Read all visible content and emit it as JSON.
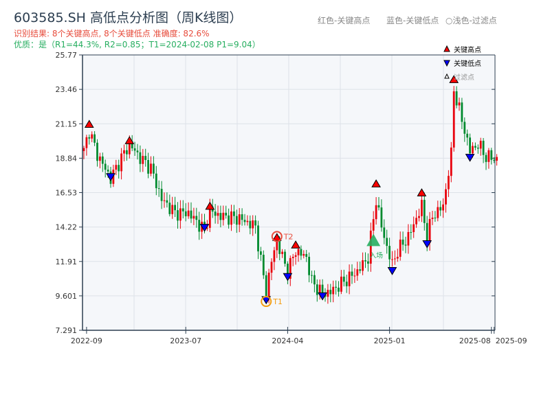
{
  "header": {
    "title": "603585.SH 高低点分析图（周K线图）",
    "result_line": "识别结果: 8个关键高点, 8个关键低点   准确度: 82.6%",
    "quality_line": "优质：是（R1=44.3%, R2=0.85；T1=2024-02-08 P1=9.04）",
    "legend_red": "红色-关键高点",
    "legend_blue": "蓝色-关键低点",
    "legend_light": "○浅色-过滤点"
  },
  "colors": {
    "up": "#e8000b",
    "down": "#008a2e",
    "high": "#ff0000",
    "low": "#0000ff",
    "entry": "#27ae60",
    "t1": "#f39c12",
    "t2": "#e74c3c",
    "axis": "#2c3e50",
    "plot_bg": "#f5f7fa"
  },
  "chart_data": {
    "type": "candlestick",
    "title": "603585.SH 高低点分析图（周K线图）",
    "ylim": [
      7.291,
      25.77
    ],
    "y_ticks": [
      "25.77",
      "23.46",
      "21.15",
      "18.84",
      "16.53",
      "14.22",
      "11.91",
      "9.601",
      "7.291"
    ],
    "y_tick_values": [
      25.77,
      23.46,
      21.15,
      18.84,
      16.53,
      14.22,
      11.91,
      9.601,
      7.291
    ],
    "x_ticks": [
      {
        "label": "2022-09",
        "week": 1
      },
      {
        "label": "2023-07",
        "week": 38
      },
      {
        "label": "2024-04",
        "week": 76
      },
      {
        "label": "2025-01",
        "week": 114
      },
      {
        "label": "2025-08",
        "week": 152
      },
      {
        "label": "2025-09",
        "week": 153
      }
    ],
    "weeks": 155,
    "close_anchors": [
      [
        0,
        19.32
      ],
      [
        2,
        20.7
      ],
      [
        5,
        19.09
      ],
      [
        10,
        17.47
      ],
      [
        14,
        18.86
      ],
      [
        17,
        19.78
      ],
      [
        21,
        18.86
      ],
      [
        25,
        18.17
      ],
      [
        29,
        16.09
      ],
      [
        34,
        15.17
      ],
      [
        39,
        15.17
      ],
      [
        45,
        14.0
      ],
      [
        47,
        15.3
      ],
      [
        51,
        14.94
      ],
      [
        58,
        14.8
      ],
      [
        64,
        14.25
      ],
      [
        66,
        11.94
      ],
      [
        68,
        9.87
      ],
      [
        70,
        11.94
      ],
      [
        72,
        13.33
      ],
      [
        74,
        12.18
      ],
      [
        76,
        11.25
      ],
      [
        79,
        12.64
      ],
      [
        83,
        12.18
      ],
      [
        85,
        10.56
      ],
      [
        89,
        9.73
      ],
      [
        92,
        9.87
      ],
      [
        97,
        10.56
      ],
      [
        102,
        11.25
      ],
      [
        106,
        12.18
      ],
      [
        109,
        16.09
      ],
      [
        111,
        14.25
      ],
      [
        113,
        12.87
      ],
      [
        115,
        11.71
      ],
      [
        117,
        12.64
      ],
      [
        121,
        13.56
      ],
      [
        126,
        15.63
      ],
      [
        128,
        13.56
      ],
      [
        130,
        14.94
      ],
      [
        134,
        15.63
      ],
      [
        137,
        19.09
      ],
      [
        138,
        23.47
      ],
      [
        141,
        21.39
      ],
      [
        144,
        19.32
      ],
      [
        147,
        19.78
      ],
      [
        150,
        18.95
      ],
      [
        154,
        18.77
      ]
    ],
    "key_highs": [
      [
        2,
        21.0
      ],
      [
        17,
        19.9
      ],
      [
        47,
        15.5
      ],
      [
        72,
        13.4
      ],
      [
        79,
        12.9
      ],
      [
        109,
        17.0
      ],
      [
        126,
        16.4
      ],
      [
        138,
        24.0
      ]
    ],
    "key_lows": [
      [
        10,
        17.3
      ],
      [
        45,
        13.9
      ],
      [
        68,
        9.04
      ],
      [
        76,
        10.6
      ],
      [
        89,
        9.3
      ],
      [
        115,
        11.0
      ],
      [
        128,
        12.8
      ],
      [
        144,
        18.6
      ]
    ],
    "entry": {
      "week": 108,
      "price": 13.4,
      "label": "入场"
    },
    "t1": {
      "week": 68,
      "price": 9.04,
      "label": "T1"
    },
    "t2": {
      "week": 72,
      "price": 13.4,
      "label": "T2"
    },
    "legend": [
      "关键高点",
      "关键低点",
      "过滤点"
    ],
    "legend_placement": "top-right"
  }
}
